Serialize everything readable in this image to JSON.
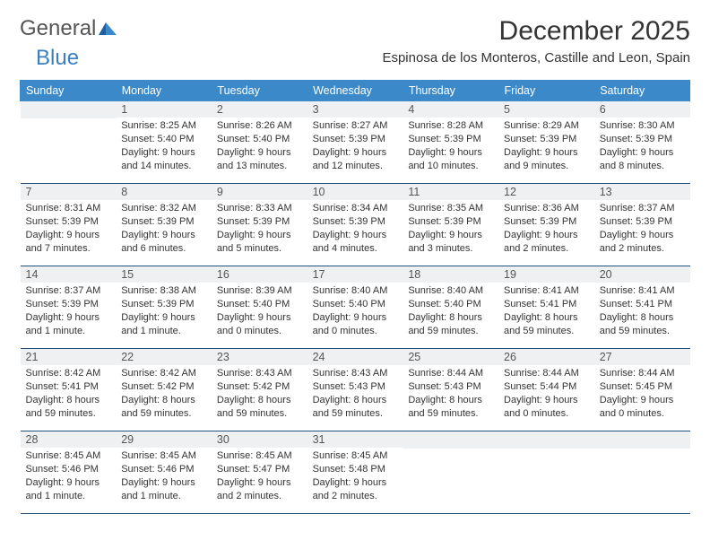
{
  "logo": {
    "text1": "General",
    "text2": "Blue"
  },
  "title": "December 2025",
  "location": "Espinosa de los Monteros, Castille and Leon, Spain",
  "colors": {
    "header_bg": "#3b89c9",
    "header_fg": "#ffffff",
    "daynum_bg": "#eef0f2",
    "daynum_fg": "#555555",
    "rule": "#1f4f7a",
    "body_text": "#333333",
    "logo_gray": "#555555",
    "logo_blue": "#3b7fbf"
  },
  "typography": {
    "title_fontsize": 30,
    "location_fontsize": 15,
    "header_fontsize": 12.5,
    "daynum_fontsize": 12.5,
    "cell_fontsize": 11
  },
  "weekdays": [
    "Sunday",
    "Monday",
    "Tuesday",
    "Wednesday",
    "Thursday",
    "Friday",
    "Saturday"
  ],
  "weeks": [
    [
      {
        "n": "",
        "l1": "",
        "l2": "",
        "l3": "",
        "l4": ""
      },
      {
        "n": "1",
        "l1": "Sunrise: 8:25 AM",
        "l2": "Sunset: 5:40 PM",
        "l3": "Daylight: 9 hours",
        "l4": "and 14 minutes."
      },
      {
        "n": "2",
        "l1": "Sunrise: 8:26 AM",
        "l2": "Sunset: 5:40 PM",
        "l3": "Daylight: 9 hours",
        "l4": "and 13 minutes."
      },
      {
        "n": "3",
        "l1": "Sunrise: 8:27 AM",
        "l2": "Sunset: 5:39 PM",
        "l3": "Daylight: 9 hours",
        "l4": "and 12 minutes."
      },
      {
        "n": "4",
        "l1": "Sunrise: 8:28 AM",
        "l2": "Sunset: 5:39 PM",
        "l3": "Daylight: 9 hours",
        "l4": "and 10 minutes."
      },
      {
        "n": "5",
        "l1": "Sunrise: 8:29 AM",
        "l2": "Sunset: 5:39 PM",
        "l3": "Daylight: 9 hours",
        "l4": "and 9 minutes."
      },
      {
        "n": "6",
        "l1": "Sunrise: 8:30 AM",
        "l2": "Sunset: 5:39 PM",
        "l3": "Daylight: 9 hours",
        "l4": "and 8 minutes."
      }
    ],
    [
      {
        "n": "7",
        "l1": "Sunrise: 8:31 AM",
        "l2": "Sunset: 5:39 PM",
        "l3": "Daylight: 9 hours",
        "l4": "and 7 minutes."
      },
      {
        "n": "8",
        "l1": "Sunrise: 8:32 AM",
        "l2": "Sunset: 5:39 PM",
        "l3": "Daylight: 9 hours",
        "l4": "and 6 minutes."
      },
      {
        "n": "9",
        "l1": "Sunrise: 8:33 AM",
        "l2": "Sunset: 5:39 PM",
        "l3": "Daylight: 9 hours",
        "l4": "and 5 minutes."
      },
      {
        "n": "10",
        "l1": "Sunrise: 8:34 AM",
        "l2": "Sunset: 5:39 PM",
        "l3": "Daylight: 9 hours",
        "l4": "and 4 minutes."
      },
      {
        "n": "11",
        "l1": "Sunrise: 8:35 AM",
        "l2": "Sunset: 5:39 PM",
        "l3": "Daylight: 9 hours",
        "l4": "and 3 minutes."
      },
      {
        "n": "12",
        "l1": "Sunrise: 8:36 AM",
        "l2": "Sunset: 5:39 PM",
        "l3": "Daylight: 9 hours",
        "l4": "and 2 minutes."
      },
      {
        "n": "13",
        "l1": "Sunrise: 8:37 AM",
        "l2": "Sunset: 5:39 PM",
        "l3": "Daylight: 9 hours",
        "l4": "and 2 minutes."
      }
    ],
    [
      {
        "n": "14",
        "l1": "Sunrise: 8:37 AM",
        "l2": "Sunset: 5:39 PM",
        "l3": "Daylight: 9 hours",
        "l4": "and 1 minute."
      },
      {
        "n": "15",
        "l1": "Sunrise: 8:38 AM",
        "l2": "Sunset: 5:39 PM",
        "l3": "Daylight: 9 hours",
        "l4": "and 1 minute."
      },
      {
        "n": "16",
        "l1": "Sunrise: 8:39 AM",
        "l2": "Sunset: 5:40 PM",
        "l3": "Daylight: 9 hours",
        "l4": "and 0 minutes."
      },
      {
        "n": "17",
        "l1": "Sunrise: 8:40 AM",
        "l2": "Sunset: 5:40 PM",
        "l3": "Daylight: 9 hours",
        "l4": "and 0 minutes."
      },
      {
        "n": "18",
        "l1": "Sunrise: 8:40 AM",
        "l2": "Sunset: 5:40 PM",
        "l3": "Daylight: 8 hours",
        "l4": "and 59 minutes."
      },
      {
        "n": "19",
        "l1": "Sunrise: 8:41 AM",
        "l2": "Sunset: 5:41 PM",
        "l3": "Daylight: 8 hours",
        "l4": "and 59 minutes."
      },
      {
        "n": "20",
        "l1": "Sunrise: 8:41 AM",
        "l2": "Sunset: 5:41 PM",
        "l3": "Daylight: 8 hours",
        "l4": "and 59 minutes."
      }
    ],
    [
      {
        "n": "21",
        "l1": "Sunrise: 8:42 AM",
        "l2": "Sunset: 5:41 PM",
        "l3": "Daylight: 8 hours",
        "l4": "and 59 minutes."
      },
      {
        "n": "22",
        "l1": "Sunrise: 8:42 AM",
        "l2": "Sunset: 5:42 PM",
        "l3": "Daylight: 8 hours",
        "l4": "and 59 minutes."
      },
      {
        "n": "23",
        "l1": "Sunrise: 8:43 AM",
        "l2": "Sunset: 5:42 PM",
        "l3": "Daylight: 8 hours",
        "l4": "and 59 minutes."
      },
      {
        "n": "24",
        "l1": "Sunrise: 8:43 AM",
        "l2": "Sunset: 5:43 PM",
        "l3": "Daylight: 8 hours",
        "l4": "and 59 minutes."
      },
      {
        "n": "25",
        "l1": "Sunrise: 8:44 AM",
        "l2": "Sunset: 5:43 PM",
        "l3": "Daylight: 8 hours",
        "l4": "and 59 minutes."
      },
      {
        "n": "26",
        "l1": "Sunrise: 8:44 AM",
        "l2": "Sunset: 5:44 PM",
        "l3": "Daylight: 9 hours",
        "l4": "and 0 minutes."
      },
      {
        "n": "27",
        "l1": "Sunrise: 8:44 AM",
        "l2": "Sunset: 5:45 PM",
        "l3": "Daylight: 9 hours",
        "l4": "and 0 minutes."
      }
    ],
    [
      {
        "n": "28",
        "l1": "Sunrise: 8:45 AM",
        "l2": "Sunset: 5:46 PM",
        "l3": "Daylight: 9 hours",
        "l4": "and 1 minute."
      },
      {
        "n": "29",
        "l1": "Sunrise: 8:45 AM",
        "l2": "Sunset: 5:46 PM",
        "l3": "Daylight: 9 hours",
        "l4": "and 1 minute."
      },
      {
        "n": "30",
        "l1": "Sunrise: 8:45 AM",
        "l2": "Sunset: 5:47 PM",
        "l3": "Daylight: 9 hours",
        "l4": "and 2 minutes."
      },
      {
        "n": "31",
        "l1": "Sunrise: 8:45 AM",
        "l2": "Sunset: 5:48 PM",
        "l3": "Daylight: 9 hours",
        "l4": "and 2 minutes."
      },
      {
        "n": "",
        "l1": "",
        "l2": "",
        "l3": "",
        "l4": ""
      },
      {
        "n": "",
        "l1": "",
        "l2": "",
        "l3": "",
        "l4": ""
      },
      {
        "n": "",
        "l1": "",
        "l2": "",
        "l3": "",
        "l4": ""
      }
    ]
  ]
}
